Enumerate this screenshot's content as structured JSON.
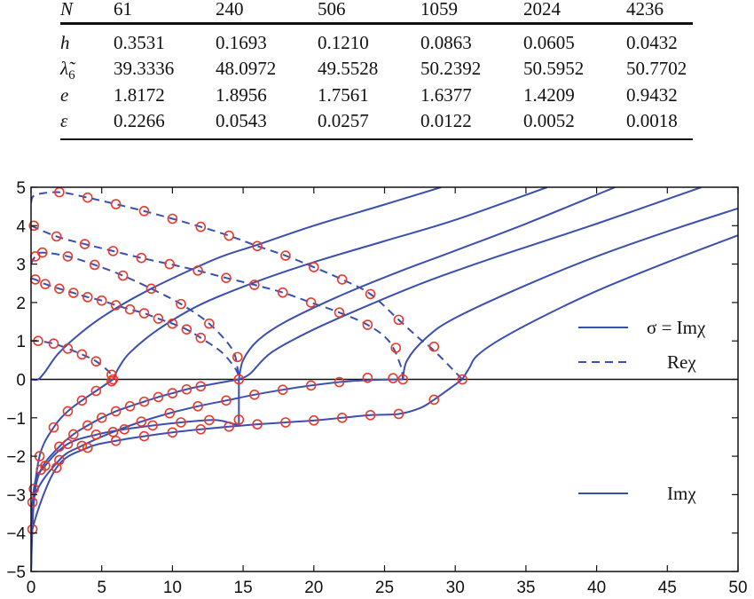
{
  "table": {
    "header": {
      "label": "N",
      "values": [
        "61",
        "240",
        "506",
        "1059",
        "2024",
        "4236"
      ]
    },
    "rows": [
      {
        "label": "h",
        "values": [
          "0.3531",
          "0.1693",
          "0.1210",
          "0.0863",
          "0.0605",
          "0.0432"
        ]
      },
      {
        "label": "λ̃",
        "sub": "6",
        "values": [
          "39.3336",
          "48.0972",
          "49.5528",
          "50.2392",
          "50.5952",
          "50.7702"
        ]
      },
      {
        "label": "e",
        "values": [
          "1.8172",
          "1.8956",
          "1.7561",
          "1.6377",
          "1.4209",
          "0.9432"
        ]
      },
      {
        "label": "ε",
        "values": [
          "0.2266",
          "0.0543",
          "0.0257",
          "0.0122",
          "0.0052",
          "0.0018"
        ]
      }
    ]
  },
  "chart_data": {
    "type": "line",
    "xlim": [
      0,
      50
    ],
    "ylim": [
      -5,
      5
    ],
    "xticks": [
      0,
      5,
      10,
      15,
      20,
      25,
      30,
      35,
      40,
      45,
      50
    ],
    "yticks": [
      -5,
      -4,
      -3,
      -2,
      -1,
      0,
      1,
      2,
      3,
      4,
      5
    ],
    "grid": false,
    "line_color": "#3a4fb0",
    "marker_color": "#e8392c",
    "legend": [
      {
        "label": "σ = Imχ",
        "style": "solid"
      },
      {
        "label": "Reχ",
        "style": "dashed"
      },
      {
        "label": "Imχ",
        "style": "solid"
      }
    ],
    "series": [
      {
        "style": "dashed",
        "points": [
          [
            0,
            1.0
          ],
          [
            0.5,
            1.0
          ],
          [
            1.6,
            0.93
          ],
          [
            2.6,
            0.8
          ],
          [
            3.6,
            0.65
          ],
          [
            4.6,
            0.47
          ],
          [
            5.5,
            0.2
          ],
          [
            5.8,
            0
          ]
        ]
      },
      {
        "style": "dashed",
        "points": [
          [
            0,
            2.62
          ],
          [
            0.3,
            2.6
          ],
          [
            1,
            2.48
          ],
          [
            2,
            2.36
          ],
          [
            3,
            2.25
          ],
          [
            4,
            2.14
          ],
          [
            5,
            2.05
          ],
          [
            6,
            1.93
          ],
          [
            7,
            1.82
          ],
          [
            8,
            1.72
          ],
          [
            9,
            1.58
          ],
          [
            10,
            1.45
          ],
          [
            11,
            1.3
          ],
          [
            12,
            1.08
          ],
          [
            13.5,
            0.7
          ],
          [
            14.5,
            0.25
          ],
          [
            14.7,
            0
          ]
        ]
      },
      {
        "style": "dashed",
        "points": [
          [
            0,
            3.0
          ],
          [
            0.3,
            3.2
          ],
          [
            0.8,
            3.3
          ],
          [
            2.6,
            3.2
          ],
          [
            4.5,
            2.98
          ],
          [
            6.5,
            2.7
          ],
          [
            8.5,
            2.36
          ],
          [
            10.6,
            1.96
          ],
          [
            12.6,
            1.45
          ],
          [
            14.2,
            0.8
          ],
          [
            14.6,
            0.3
          ],
          [
            14.7,
            0
          ]
        ]
      },
      {
        "style": "dashed",
        "points": [
          [
            0,
            4.0
          ],
          [
            1.8,
            3.72
          ],
          [
            3.8,
            3.52
          ],
          [
            5.8,
            3.34
          ],
          [
            7.8,
            3.16
          ],
          [
            9.8,
            3.0
          ],
          [
            11.8,
            2.83
          ],
          [
            13.8,
            2.64
          ],
          [
            15.8,
            2.46
          ],
          [
            17.8,
            2.26
          ],
          [
            19.8,
            2.0
          ],
          [
            21.8,
            1.74
          ],
          [
            23.8,
            1.42
          ],
          [
            25.3,
            1.0
          ],
          [
            26.1,
            0.4
          ],
          [
            26.3,
            0
          ]
        ]
      },
      {
        "style": "dashed",
        "points": [
          [
            0,
            4.6
          ],
          [
            0.3,
            4.8
          ],
          [
            2,
            4.87
          ],
          [
            4,
            4.73
          ],
          [
            6,
            4.56
          ],
          [
            8,
            4.38
          ],
          [
            10,
            4.18
          ],
          [
            12,
            3.97
          ],
          [
            14,
            3.74
          ],
          [
            16,
            3.47
          ],
          [
            18,
            3.22
          ],
          [
            20,
            2.92
          ],
          [
            22,
            2.6
          ],
          [
            24,
            2.22
          ],
          [
            26,
            1.55
          ],
          [
            27.5,
            1.05
          ],
          [
            28.5,
            0.75
          ],
          [
            30.5,
            0
          ]
        ]
      },
      {
        "style": "solid",
        "points": [
          [
            0,
            0
          ],
          [
            0.5,
            0
          ],
          [
            1,
            0.2
          ],
          [
            2,
            0.7
          ],
          [
            4,
            1.35
          ],
          [
            6,
            1.85
          ],
          [
            8.5,
            2.36
          ],
          [
            11,
            2.8
          ],
          [
            13.5,
            3.2
          ],
          [
            16,
            3.5
          ],
          [
            20,
            4.0
          ],
          [
            25,
            4.55
          ],
          [
            29,
            5
          ]
        ]
      },
      {
        "style": "solid",
        "points": [
          [
            5.8,
            0
          ],
          [
            6.2,
            0.3
          ],
          [
            7,
            0.7
          ],
          [
            9,
            1.3
          ],
          [
            12,
            1.95
          ],
          [
            16,
            2.55
          ],
          [
            20,
            3.05
          ],
          [
            25,
            3.6
          ],
          [
            30,
            4.15
          ],
          [
            36.5,
            5
          ]
        ]
      },
      {
        "style": "solid",
        "points": [
          [
            14.7,
            0
          ],
          [
            15,
            0.5
          ],
          [
            16,
            1.0
          ],
          [
            18,
            1.5
          ],
          [
            22,
            2.2
          ],
          [
            26,
            2.8
          ],
          [
            30,
            3.35
          ],
          [
            35,
            4.05
          ],
          [
            41.3,
            5
          ]
        ]
      },
      {
        "style": "solid",
        "points": [
          [
            14.7,
            0
          ],
          [
            15.5,
            0.15
          ],
          [
            17,
            0.7
          ],
          [
            20,
            1.3
          ],
          [
            24,
            1.95
          ],
          [
            28,
            2.55
          ],
          [
            33,
            3.2
          ],
          [
            40,
            4.05
          ],
          [
            47.4,
            5
          ]
        ]
      },
      {
        "style": "solid",
        "points": [
          [
            26.3,
            0
          ],
          [
            26.6,
            0.5
          ],
          [
            28,
            1.1
          ],
          [
            30,
            1.6
          ],
          [
            35,
            2.45
          ],
          [
            40,
            3.2
          ],
          [
            45,
            3.85
          ],
          [
            50,
            4.45
          ]
        ]
      },
      {
        "style": "solid",
        "points": [
          [
            30.5,
            0
          ],
          [
            31,
            0.3
          ],
          [
            31.5,
            0.6
          ],
          [
            33,
            1.0
          ],
          [
            36,
            1.6
          ],
          [
            40,
            2.3
          ],
          [
            45,
            3.05
          ],
          [
            50,
            3.75
          ]
        ]
      },
      {
        "style": "solid",
        "points": [
          [
            0,
            -5
          ],
          [
            0.1,
            -3.5
          ],
          [
            0.6,
            -2.0
          ],
          [
            1.6,
            -1.25
          ],
          [
            2.6,
            -0.83
          ],
          [
            3.6,
            -0.55
          ],
          [
            4.6,
            -0.3
          ],
          [
            5.8,
            0
          ]
        ]
      },
      {
        "style": "solid",
        "points": [
          [
            0,
            -5
          ],
          [
            0.2,
            -3.2
          ],
          [
            0.7,
            -2.35
          ],
          [
            2,
            -1.75
          ],
          [
            3,
            -1.43
          ],
          [
            4,
            -1.2
          ],
          [
            5,
            -1.0
          ],
          [
            6,
            -0.83
          ],
          [
            7,
            -0.7
          ],
          [
            8,
            -0.58
          ],
          [
            9,
            -0.46
          ],
          [
            10,
            -0.36
          ],
          [
            11,
            -0.26
          ],
          [
            12,
            -0.18
          ],
          [
            14.7,
            0
          ]
        ]
      },
      {
        "style": "solid",
        "points": [
          [
            0,
            -5
          ],
          [
            0.2,
            -2.85
          ],
          [
            1,
            -2.25
          ],
          [
            2.6,
            -1.68
          ],
          [
            4.6,
            -1.44
          ],
          [
            6.6,
            -1.3
          ],
          [
            8.6,
            -1.2
          ],
          [
            10.6,
            -1.12
          ],
          [
            12.6,
            -1.06
          ],
          [
            13.5,
            -1.08
          ],
          [
            14.7,
            -1.2
          ]
        ]
      },
      {
        "style": "solid",
        "points": [
          [
            0,
            -5
          ],
          [
            0.1,
            -3.2
          ],
          [
            2,
            -2.1
          ],
          [
            3.6,
            -1.73
          ],
          [
            5.8,
            -1.37
          ],
          [
            7.8,
            -1.1
          ],
          [
            9.8,
            -0.88
          ],
          [
            11.8,
            -0.7
          ],
          [
            13.8,
            -0.55
          ],
          [
            15.8,
            -0.4
          ],
          [
            17.8,
            -0.27
          ],
          [
            19.8,
            -0.16
          ],
          [
            21.8,
            -0.07
          ],
          [
            23.8,
            -0.02
          ],
          [
            26.3,
            0
          ]
        ]
      },
      {
        "style": "solid",
        "points": [
          [
            0,
            -5
          ],
          [
            0.1,
            -3.9
          ],
          [
            1.8,
            -2.3
          ],
          [
            4,
            -1.78
          ],
          [
            6,
            -1.6
          ],
          [
            8,
            -1.48
          ],
          [
            10,
            -1.38
          ],
          [
            12,
            -1.3
          ],
          [
            14,
            -1.23
          ],
          [
            16,
            -1.17
          ],
          [
            18,
            -1.12
          ],
          [
            20,
            -1.07
          ],
          [
            22,
            -1.0
          ],
          [
            24,
            -0.93
          ],
          [
            26,
            -0.9
          ],
          [
            27.5,
            -0.75
          ],
          [
            28.5,
            -0.53
          ],
          [
            30.5,
            0
          ]
        ]
      },
      {
        "style": "solid",
        "points": [
          [
            14.7,
            -1.2
          ],
          [
            14.7,
            0
          ]
        ]
      }
    ],
    "markers": [
      [
        0.5,
        1.0
      ],
      [
        1.6,
        0.93
      ],
      [
        2.6,
        0.8
      ],
      [
        3.6,
        0.65
      ],
      [
        4.6,
        0.47
      ],
      [
        5.7,
        0.12
      ],
      [
        5.8,
        0
      ],
      [
        5.7,
        -0.05
      ],
      [
        0.3,
        2.6
      ],
      [
        1,
        2.48
      ],
      [
        2,
        2.36
      ],
      [
        3,
        2.25
      ],
      [
        4,
        2.14
      ],
      [
        5,
        2.05
      ],
      [
        6,
        1.93
      ],
      [
        7,
        1.82
      ],
      [
        8,
        1.72
      ],
      [
        9,
        1.58
      ],
      [
        10,
        1.45
      ],
      [
        11,
        1.3
      ],
      [
        12,
        1.08
      ],
      [
        0.3,
        3.2
      ],
      [
        0.8,
        3.3
      ],
      [
        2.6,
        3.2
      ],
      [
        4.5,
        2.98
      ],
      [
        6.5,
        2.7
      ],
      [
        8.5,
        2.36
      ],
      [
        10.6,
        1.96
      ],
      [
        12.6,
        1.45
      ],
      [
        14.6,
        0.58
      ],
      [
        14.7,
        0
      ],
      [
        0.2,
        4.0
      ],
      [
        1.8,
        3.72
      ],
      [
        3.8,
        3.52
      ],
      [
        5.8,
        3.34
      ],
      [
        7.8,
        3.16
      ],
      [
        9.8,
        3.0
      ],
      [
        11.8,
        2.83
      ],
      [
        13.8,
        2.64
      ],
      [
        15.8,
        2.46
      ],
      [
        17.8,
        2.26
      ],
      [
        19.8,
        2.0
      ],
      [
        21.8,
        1.74
      ],
      [
        23.8,
        1.42
      ],
      [
        25.8,
        0.82
      ],
      [
        26.3,
        0
      ],
      [
        2,
        4.87
      ],
      [
        4,
        4.73
      ],
      [
        6,
        4.56
      ],
      [
        8,
        4.38
      ],
      [
        10,
        4.18
      ],
      [
        12,
        3.97
      ],
      [
        14,
        3.74
      ],
      [
        16,
        3.47
      ],
      [
        18,
        3.22
      ],
      [
        20,
        2.92
      ],
      [
        22,
        2.6
      ],
      [
        24,
        2.22
      ],
      [
        26,
        1.55
      ],
      [
        28.5,
        0.85
      ],
      [
        30.5,
        0
      ],
      [
        0.6,
        -2.0
      ],
      [
        1.6,
        -1.25
      ],
      [
        2.6,
        -0.83
      ],
      [
        3.6,
        -0.55
      ],
      [
        4.6,
        -0.3
      ],
      [
        0.7,
        -2.35
      ],
      [
        2,
        -1.75
      ],
      [
        3,
        -1.43
      ],
      [
        4,
        -1.2
      ],
      [
        5,
        -1.0
      ],
      [
        6,
        -0.83
      ],
      [
        7,
        -0.7
      ],
      [
        8,
        -0.58
      ],
      [
        9,
        -0.46
      ],
      [
        10,
        -0.36
      ],
      [
        11,
        -0.26
      ],
      [
        12,
        -0.18
      ],
      [
        0.2,
        -2.85
      ],
      [
        1,
        -2.25
      ],
      [
        2.6,
        -1.68
      ],
      [
        4.6,
        -1.44
      ],
      [
        6.6,
        -1.3
      ],
      [
        8.6,
        -1.2
      ],
      [
        10.6,
        -1.12
      ],
      [
        12.6,
        -1.06
      ],
      [
        14.7,
        -1.05
      ],
      [
        0.1,
        -3.2
      ],
      [
        2,
        -2.1
      ],
      [
        3.6,
        -1.73
      ],
      [
        5.8,
        -1.37
      ],
      [
        7.8,
        -1.1
      ],
      [
        9.8,
        -0.88
      ],
      [
        11.8,
        -0.7
      ],
      [
        13.8,
        -0.55
      ],
      [
        15.8,
        -0.4
      ],
      [
        17.8,
        -0.27
      ],
      [
        19.8,
        -0.16
      ],
      [
        21.8,
        -0.07
      ],
      [
        23.8,
        0.04
      ],
      [
        25.6,
        0.03
      ],
      [
        0.1,
        -3.9
      ],
      [
        1.8,
        -2.3
      ],
      [
        4,
        -1.78
      ],
      [
        6,
        -1.6
      ],
      [
        8,
        -1.48
      ],
      [
        10,
        -1.38
      ],
      [
        12,
        -1.3
      ],
      [
        14,
        -1.23
      ],
      [
        16,
        -1.17
      ],
      [
        18,
        -1.12
      ],
      [
        20,
        -1.07
      ],
      [
        22,
        -1.0
      ],
      [
        24,
        -0.93
      ],
      [
        26,
        -0.9
      ],
      [
        28.5,
        -0.53
      ]
    ]
  }
}
